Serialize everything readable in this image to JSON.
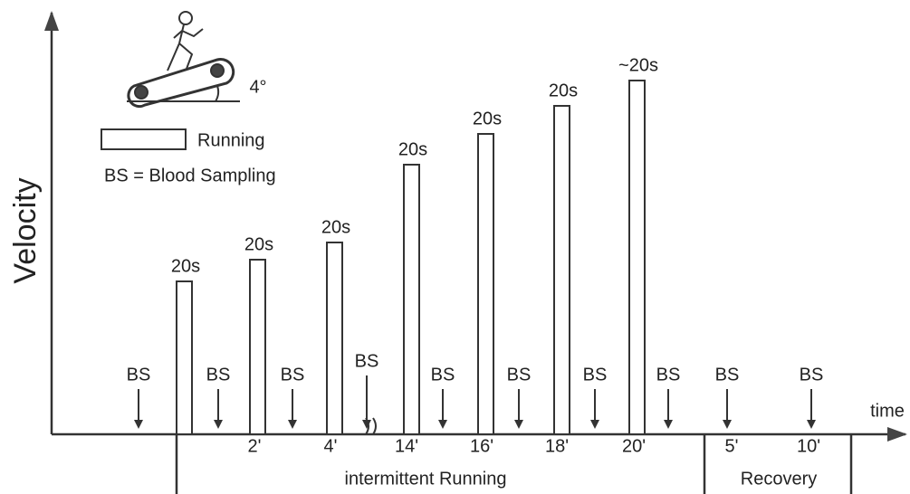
{
  "axes": {
    "y_label": "Velocity",
    "x_label": "time"
  },
  "legend": {
    "running": "Running",
    "blood_sampling": "BS = Blood Sampling"
  },
  "incline": "4°",
  "bars": [
    {
      "label": "20s"
    },
    {
      "label": "20s"
    },
    {
      "label": "20s"
    },
    {
      "label": "20s"
    },
    {
      "label": "20s"
    },
    {
      "label": "20s"
    },
    {
      "label": "~20s"
    }
  ],
  "samples": [
    "BS",
    "BS",
    "BS",
    "BS",
    "BS",
    "BS",
    "BS",
    "BS",
    "BS",
    "BS"
  ],
  "ticks": [
    "2'",
    "4'",
    "14'",
    "16'",
    "18'",
    "20'",
    "5'",
    "10'"
  ],
  "phases": [
    "intermittent Running",
    "Recovery"
  ]
}
